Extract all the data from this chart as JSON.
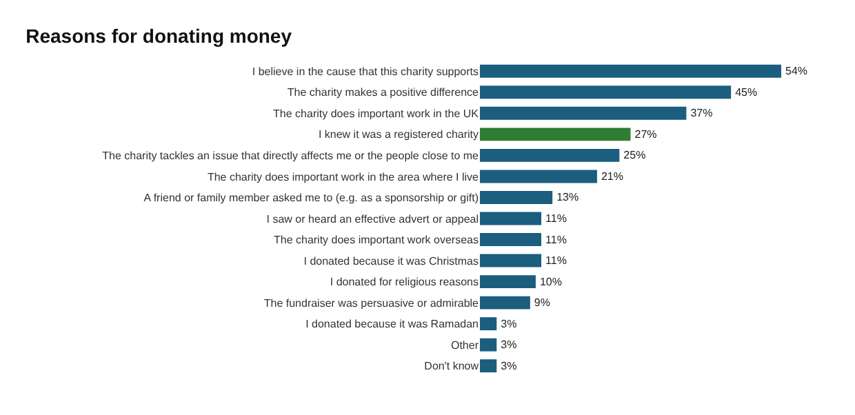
{
  "chart_data": {
    "type": "bar",
    "title": "Reasons for donating money",
    "orientation": "horizontal",
    "categories": [
      "I believe in the cause that this charity supports",
      "The charity makes a positive difference",
      "The charity does important work in the UK",
      "I knew it was a registered charity",
      "The charity tackles an issue that directly affects me or the people close to me",
      "The charity does important work in the area where I live",
      "A friend or family member asked me to (e.g. as a sponsorship or gift)",
      "I saw or heard an effective advert or appeal",
      "The charity does important work overseas",
      "I donated because it was Christmas",
      "I donated for religious reasons",
      "The fundraiser was persuasive or admirable",
      "I donated because it was Ramadan",
      "Other",
      "Don't know"
    ],
    "values": [
      54,
      45,
      37,
      27,
      25,
      21,
      13,
      11,
      11,
      11,
      10,
      9,
      3,
      3,
      3
    ],
    "value_labels": [
      "54%",
      "45%",
      "37%",
      "27%",
      "25%",
      "21%",
      "13%",
      "11%",
      "11%",
      "11%",
      "10%",
      "9%",
      "3%",
      "3%",
      "3%"
    ],
    "colors": [
      "#1b5e7e",
      "#1b5e7e",
      "#1b5e7e",
      "#2e7d32",
      "#1b5e7e",
      "#1b5e7e",
      "#1b5e7e",
      "#1b5e7e",
      "#1b5e7e",
      "#1b5e7e",
      "#1b5e7e",
      "#1b5e7e",
      "#1b5e7e",
      "#1b5e7e",
      "#1b5e7e"
    ],
    "tick_labels": "y"
  }
}
